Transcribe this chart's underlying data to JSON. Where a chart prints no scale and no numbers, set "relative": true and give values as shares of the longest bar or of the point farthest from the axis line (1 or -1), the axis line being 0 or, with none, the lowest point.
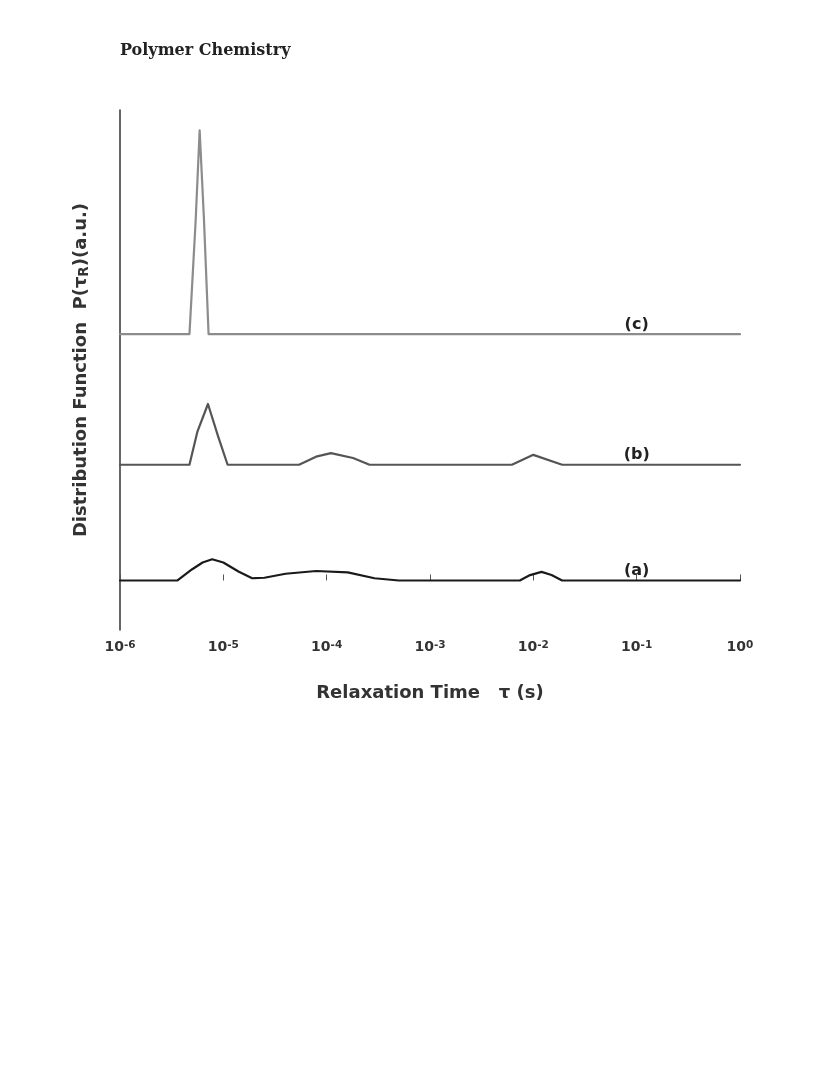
{
  "chart_data": {
    "type": "line",
    "relative": true,
    "log": "x",
    "xlabel": "Relaxation Time   τ (s)",
    "ylabel": "Distribution Function  P(τ$_{R}$)(a.u.)",
    "annotations": [
      "Polymer Chemistry"
    ],
    "xlim": [
      1e-06,
      1
    ],
    "xticks": [
      {
        "value": 1e-06,
        "label": "10$^{-6}$"
      },
      {
        "value": 1e-05,
        "label": "10$^{-5}$"
      },
      {
        "value": 0.0001,
        "label": "10$^{-4}$"
      },
      {
        "value": 0.001,
        "label": "10$^{-3}$"
      },
      {
        "value": 0.01,
        "label": "10$^{-2}$"
      },
      {
        "value": 0.1,
        "label": "10$^{-1}$"
      },
      {
        "value": 1,
        "label": "10$^{0}$"
      }
    ],
    "grid": false,
    "marker": "none",
    "line_style": "solid",
    "series": [
      {
        "name": "(a)",
        "color": "#1a1a1a",
        "x": [
          1e-06,
          3.6e-06,
          5e-06,
          6.3e-06,
          7.8e-06,
          1e-05,
          1.4e-05,
          1.9e-05,
          2.5e-05,
          4e-05,
          7.9e-05,
          0.00016,
          0.00029,
          0.0005,
          0.0074,
          0.0093,
          0.012,
          0.015,
          0.019,
          0.1,
          1
        ],
        "values": [
          0,
          0,
          0.025,
          0.04,
          0.047,
          0.04,
          0.02,
          0.005,
          0.006,
          0.015,
          0.021,
          0.018,
          0.005,
          0,
          0,
          0.012,
          0.019,
          0.012,
          0,
          0,
          0
        ]
      },
      {
        "name": "(b)",
        "color": "#555555",
        "x": [
          1e-06,
          4.7e-06,
          5.6e-06,
          7.1e-06,
          8.9e-06,
          1.1e-05,
          5.4e-05,
          7.9e-05,
          0.00011,
          0.00018,
          0.00026,
          0.0062,
          0.01,
          0.019,
          0.1,
          1
        ],
        "values": [
          0.257,
          0.257,
          0.33,
          0.392,
          0.32,
          0.257,
          0.257,
          0.275,
          0.283,
          0.272,
          0.257,
          0.257,
          0.279,
          0.257,
          0.257,
          0.257
        ]
      },
      {
        "name": "(c)",
        "color": "#8c8c8c",
        "x": [
          1e-06,
          4.7e-06,
          5.4e-06,
          5.9e-06,
          6.5e-06,
          7.2e-06,
          0.1,
          1
        ],
        "values": [
          0.547,
          0.547,
          0.8,
          1,
          0.8,
          0.547,
          0.547,
          0.547
        ]
      }
    ]
  }
}
